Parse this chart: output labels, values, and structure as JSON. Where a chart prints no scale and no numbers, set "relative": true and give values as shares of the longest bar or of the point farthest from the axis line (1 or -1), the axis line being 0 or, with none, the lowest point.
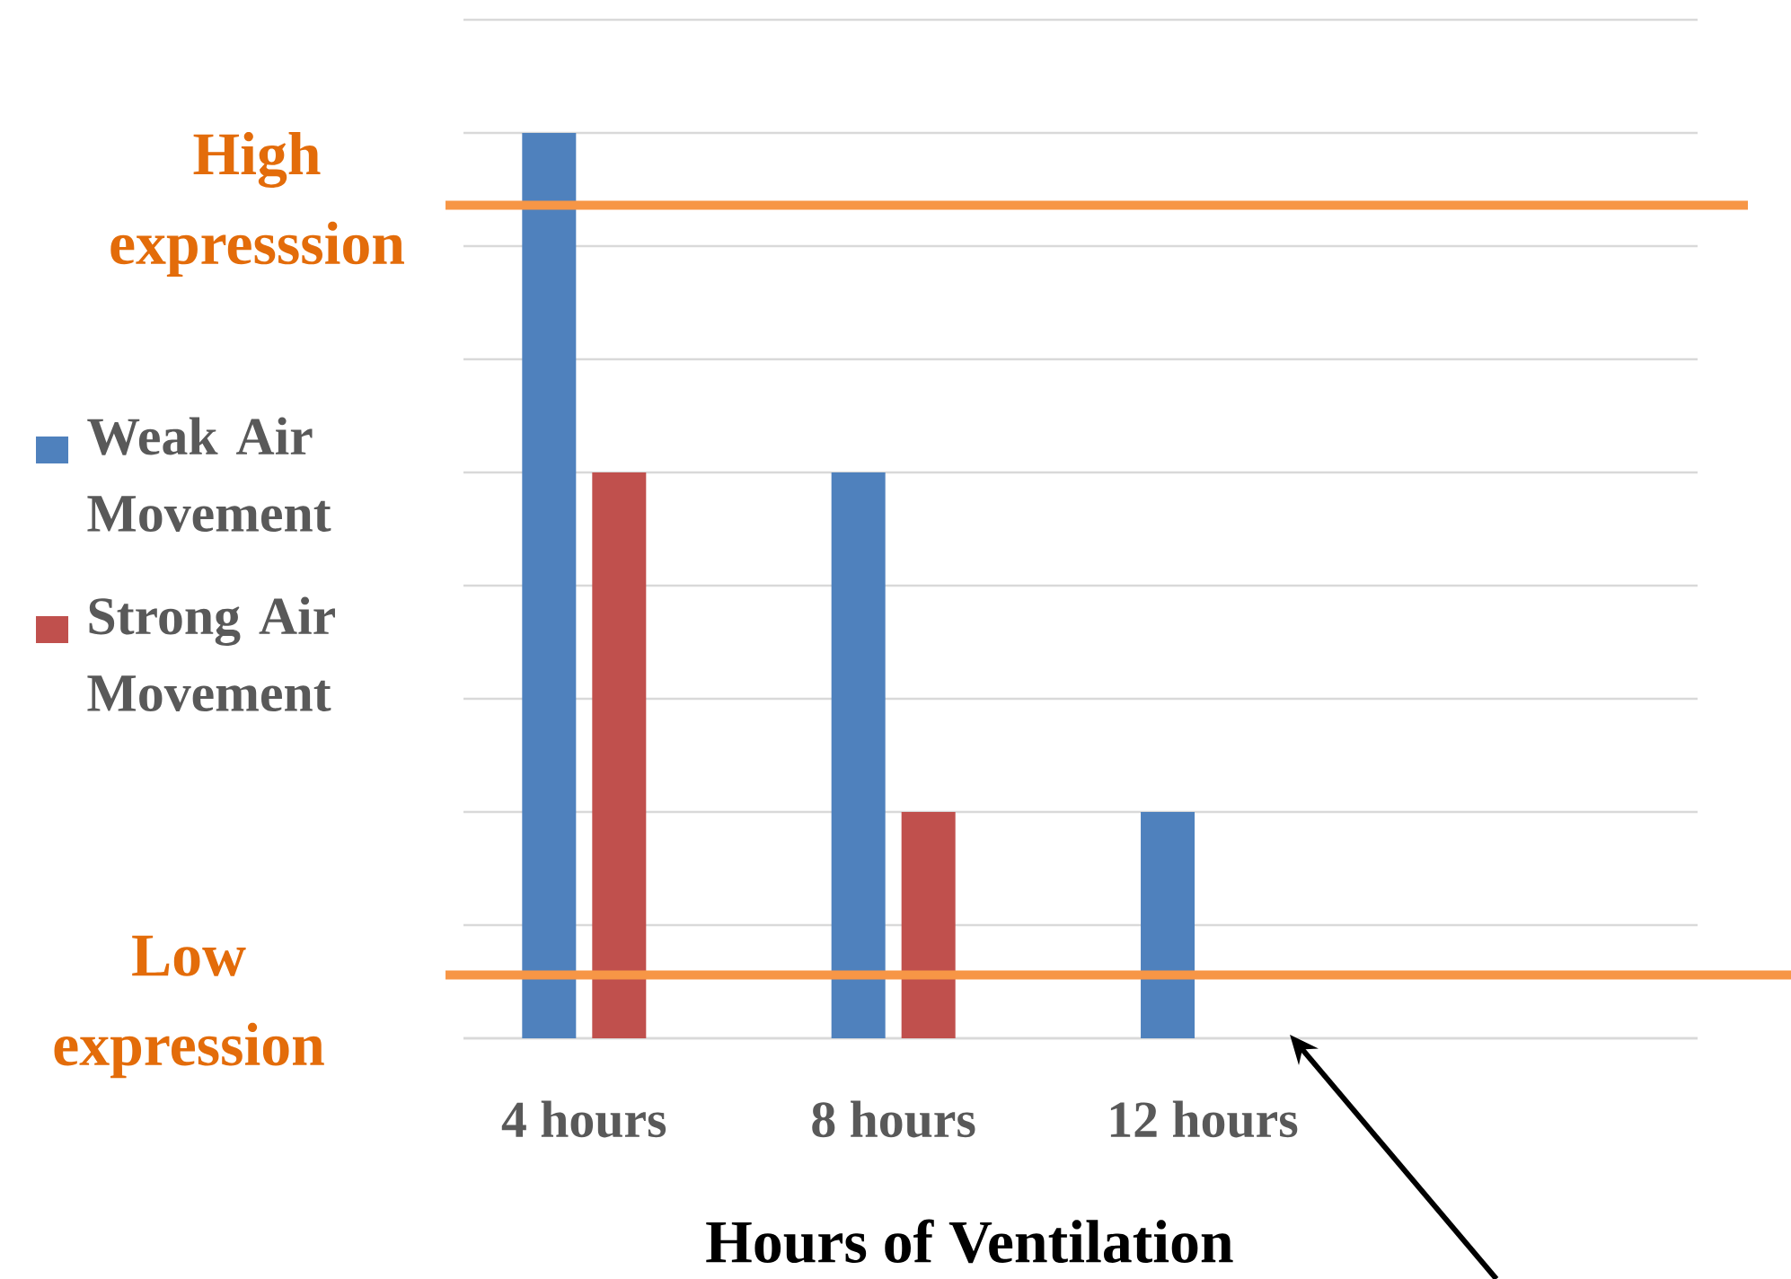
{
  "chart_data": {
    "type": "bar",
    "relative": true,
    "xlabel": "Hours of Ventilation",
    "categories": [
      "4 hours",
      "8 hours",
      "12 hours",
      null
    ],
    "series": [
      {
        "name": "Weak Air Movement",
        "color": "#4f81bd",
        "values": [
          1,
          0.625,
          0.25,
          null
        ]
      },
      {
        "name": "Strong Air Movement",
        "color": "#c0504d",
        "values": [
          0.625,
          0.25,
          null,
          null
        ]
      }
    ],
    "tick_labels": "x",
    "grid": "y",
    "legend": "left",
    "ref_lines": [
      {
        "axis": "y",
        "value": 0.92,
        "label": "High expresssion",
        "color": "#f79646"
      },
      {
        "axis": "y",
        "value": 0.07,
        "label": "Low expression",
        "color": "#f79646"
      }
    ]
  }
}
